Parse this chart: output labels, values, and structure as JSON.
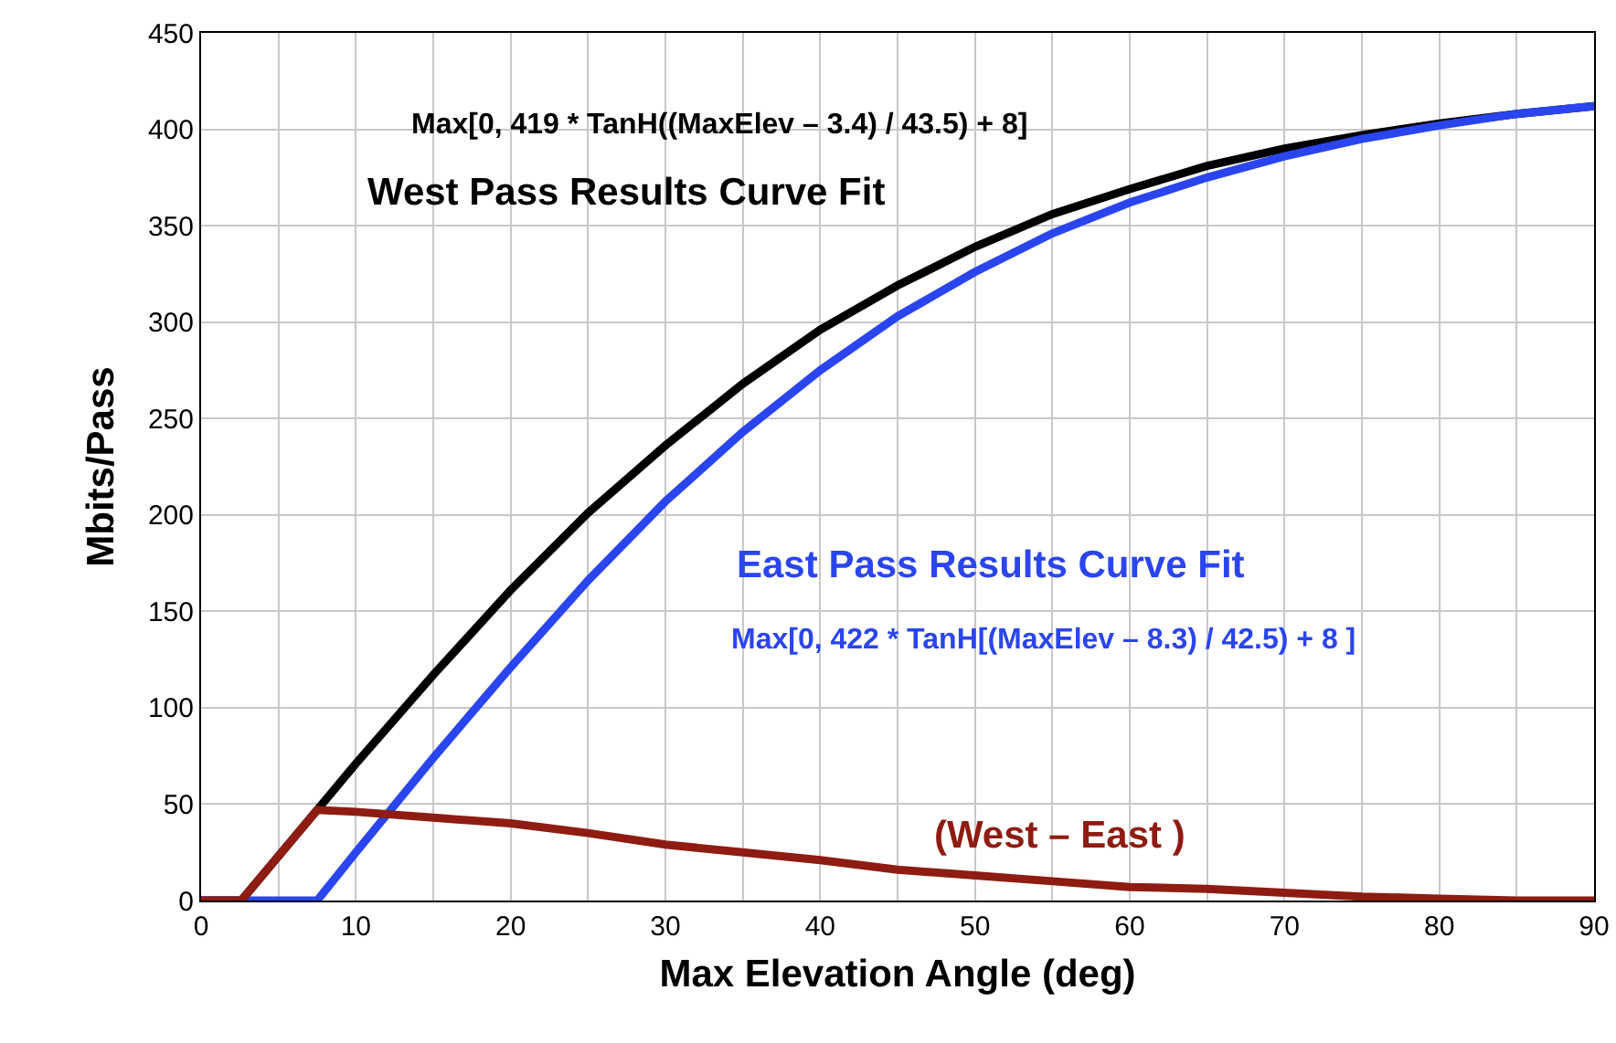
{
  "chart_data": {
    "type": "line",
    "xlabel": "Max Elevation Angle (deg)",
    "ylabel": "Mbits/Pass",
    "xlim": [
      0,
      90
    ],
    "xticks": [
      0,
      {
        "value": 5,
        "label": null
      },
      10,
      {
        "value": 15,
        "label": null
      },
      20,
      {
        "value": 25,
        "label": null
      },
      30,
      {
        "value": 35,
        "label": null
      },
      40,
      {
        "value": 45,
        "label": null
      },
      50,
      {
        "value": 55,
        "label": null
      },
      60,
      {
        "value": 65,
        "label": null
      },
      70,
      {
        "value": 75,
        "label": null
      },
      80,
      {
        "value": 85,
        "label": null
      },
      90
    ],
    "ylim": [
      0,
      450
    ],
    "yticks": [
      0,
      50,
      100,
      150,
      200,
      250,
      300,
      350,
      400,
      450
    ],
    "grid": true,
    "legend": false,
    "marker": "none",
    "line_style": "solid",
    "x": [
      0,
      2.6,
      5,
      7.5,
      10,
      15,
      20,
      25,
      30,
      35,
      40,
      45,
      50,
      55,
      60,
      65,
      70,
      75,
      80,
      85,
      90
    ],
    "series": [
      {
        "name": "West Pass Results Curve Fit",
        "color": "#000000",
        "values": [
          0,
          0,
          23,
          47,
          71,
          117,
          161,
          201,
          236,
          268,
          296,
          319,
          339,
          356,
          369,
          381,
          390,
          397,
          403,
          408,
          412
        ]
      },
      {
        "name": "East Pass Results Curve Fit",
        "color": "#2a45f0",
        "values": [
          0,
          0,
          0,
          0,
          25,
          74,
          121,
          166,
          207,
          243,
          275,
          303,
          326,
          346,
          362,
          375,
          386,
          395,
          402,
          408,
          412
        ]
      },
      {
        "name": "(West – East )",
        "color": "#8e1c12",
        "values": [
          0,
          0,
          23,
          47,
          46,
          43,
          40,
          35,
          29,
          25,
          21,
          16,
          13,
          10,
          7,
          6,
          4,
          2,
          1,
          0,
          0
        ]
      }
    ],
    "annotations": [
      "Max[0, 419 * TanH((MaxElev – 3.4) / 43.5) + 8]",
      "Max[0, 422 * TanH[(MaxElev – 8.3) / 42.5) + 8 ]"
    ]
  }
}
